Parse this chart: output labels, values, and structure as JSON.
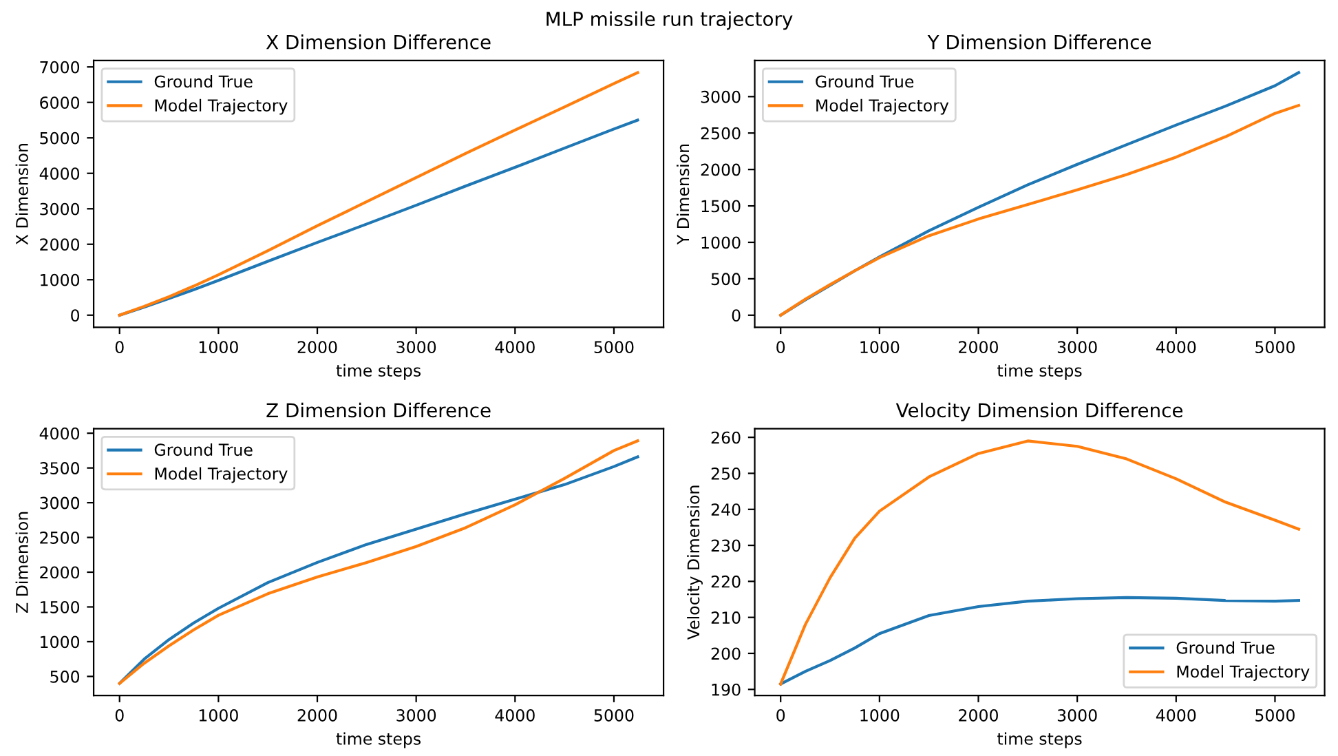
{
  "chart_data": [
    {
      "type": "line",
      "annotations": [
        "MLP missile run trajectory"
      ],
      "title": "X Dimension Difference",
      "xlabel": "time steps",
      "ylabel": "X Dimension",
      "legend": "top left",
      "xlim": [
        -262,
        5502
      ],
      "xticks": [
        0,
        1000,
        2000,
        3000,
        4000,
        5000
      ],
      "ylim": [
        -342,
        7182
      ],
      "yticks": [
        0,
        1000,
        2000,
        3000,
        4000,
        5000,
        6000,
        7000
      ],
      "x": [
        0,
        250,
        500,
        750,
        1000,
        1500,
        2000,
        2500,
        3000,
        3500,
        4000,
        4500,
        5000,
        5240
      ],
      "series": [
        {
          "name": "Ground True",
          "color": "#1f77b4",
          "values": [
            0,
            230,
            470,
            720,
            980,
            1520,
            2050,
            2570,
            3100,
            3640,
            4170,
            4710,
            5250,
            5500
          ]
        },
        {
          "name": "Model Trajectory",
          "color": "#ff7f0e",
          "values": [
            0,
            250,
            520,
            820,
            1140,
            1820,
            2520,
            3200,
            3880,
            4560,
            5220,
            5870,
            6530,
            6840
          ]
        }
      ]
    },
    {
      "type": "line",
      "title": "Y Dimension Difference",
      "xlabel": "time steps",
      "ylabel": "Y Dimension",
      "legend": "top left",
      "xlim": [
        -262,
        5502
      ],
      "xticks": [
        0,
        1000,
        2000,
        3000,
        4000,
        5000
      ],
      "ylim": [
        -166,
        3496
      ],
      "yticks": [
        0,
        500,
        1000,
        1500,
        2000,
        2500,
        3000
      ],
      "x": [
        0,
        250,
        500,
        750,
        1000,
        1500,
        2000,
        2500,
        3000,
        3500,
        4000,
        4500,
        5000,
        5240
      ],
      "series": [
        {
          "name": "Ground True",
          "color": "#1f77b4",
          "values": [
            0,
            210,
            410,
            610,
            800,
            1160,
            1480,
            1790,
            2070,
            2340,
            2610,
            2870,
            3150,
            3330
          ]
        },
        {
          "name": "Model Trajectory",
          "color": "#ff7f0e",
          "values": [
            0,
            220,
            420,
            610,
            790,
            1090,
            1320,
            1520,
            1720,
            1930,
            2170,
            2450,
            2770,
            2880
          ]
        }
      ]
    },
    {
      "type": "line",
      "title": "Z Dimension Difference",
      "xlabel": "time steps",
      "ylabel": "Z Dimension",
      "legend": "top left",
      "xlim": [
        -262,
        5502
      ],
      "xticks": [
        0,
        1000,
        2000,
        3000,
        4000,
        5000
      ],
      "ylim": [
        225,
        4065
      ],
      "yticks": [
        500,
        1000,
        1500,
        2000,
        2500,
        3000,
        3500,
        4000
      ],
      "x": [
        0,
        250,
        500,
        750,
        1000,
        1500,
        2000,
        2500,
        3000,
        3500,
        4000,
        4500,
        5000,
        5240
      ],
      "series": [
        {
          "name": "Ground True",
          "color": "#1f77b4",
          "values": [
            400,
            750,
            1030,
            1270,
            1480,
            1850,
            2140,
            2400,
            2620,
            2840,
            3050,
            3260,
            3520,
            3660
          ]
        },
        {
          "name": "Model Trajectory",
          "color": "#ff7f0e",
          "values": [
            400,
            690,
            940,
            1170,
            1380,
            1690,
            1930,
            2140,
            2370,
            2640,
            2970,
            3350,
            3750,
            3890
          ]
        }
      ]
    },
    {
      "type": "line",
      "title": "Velocity Dimension Difference",
      "xlabel": "time steps",
      "ylabel": "Velocity Dimension",
      "legend": "bottom right",
      "xlim": [
        -262,
        5502
      ],
      "xticks": [
        0,
        1000,
        2000,
        3000,
        4000,
        5000
      ],
      "ylim": [
        188.3,
        262.4
      ],
      "yticks": [
        190,
        200,
        210,
        220,
        230,
        240,
        250,
        260
      ],
      "x": [
        0,
        250,
        500,
        750,
        1000,
        1500,
        2000,
        2500,
        3000,
        3500,
        4000,
        4500,
        5000,
        5240
      ],
      "series": [
        {
          "name": "Ground True",
          "color": "#1f77b4",
          "values": [
            191.5,
            195,
            198,
            201.5,
            205.5,
            210.5,
            213,
            214.5,
            215.2,
            215.5,
            215.3,
            214.7,
            214.5,
            214.7
          ]
        },
        {
          "name": "Model Trajectory",
          "color": "#ff7f0e",
          "values": [
            191.5,
            208,
            221,
            232,
            239.5,
            249,
            255.5,
            259,
            257.5,
            254,
            248.5,
            242,
            237,
            234.5
          ]
        }
      ]
    }
  ]
}
